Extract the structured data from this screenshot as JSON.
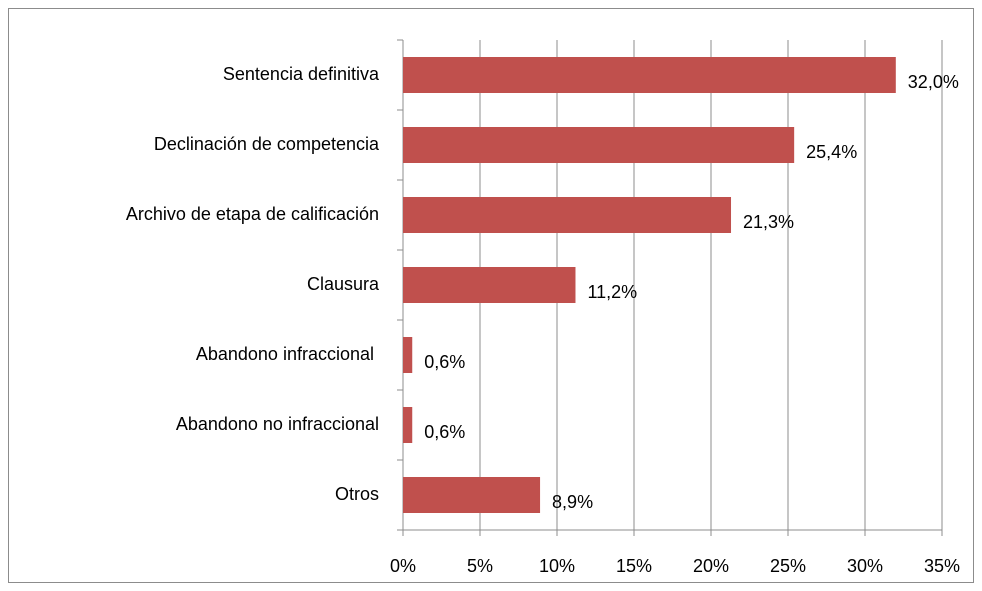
{
  "chart_data": {
    "type": "bar",
    "orientation": "horizontal",
    "categories": [
      "Sentencia definitiva",
      "Declinación de competencia",
      "Archivo de etapa de calificación",
      "Clausura",
      "Abandono infraccional ",
      "Abandono no infraccional",
      "Otros"
    ],
    "values": [
      32.0,
      25.4,
      21.3,
      11.2,
      0.6,
      0.6,
      8.9
    ],
    "value_labels": [
      "32,0%",
      "25,4%",
      "21,3%",
      "11,2%",
      "0,6%",
      "0,6%",
      "8,9%"
    ],
    "color": "#c0504d",
    "xlim": [
      0,
      35
    ],
    "xticks": [
      {
        "value": 0,
        "label": "0%"
      },
      {
        "value": 5,
        "label": "5%"
      },
      {
        "value": 10,
        "label": "10%"
      },
      {
        "value": 15,
        "label": "15%"
      },
      {
        "value": 20,
        "label": "20%"
      },
      {
        "value": 25,
        "label": "25%"
      },
      {
        "value": 30,
        "label": "30%"
      },
      {
        "value": 35,
        "label": "35%"
      }
    ],
    "grid": true
  }
}
